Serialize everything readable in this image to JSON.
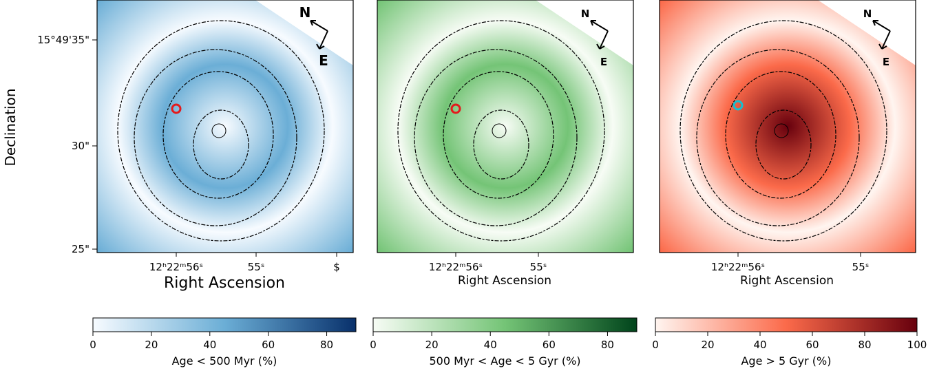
{
  "figure": {
    "y_label": "Declination",
    "dec_ticks": [
      "15°49'35\"",
      "30\"",
      "25\""
    ],
    "panels": [
      {
        "x_label": "Right Ascension",
        "ra_ticks": [
          "12ʰ22ᵐ56ˢ",
          "55ˢ",
          "$"
        ],
        "compass": {
          "n": "N",
          "e": "E"
        },
        "marker_color": "#e41a1c",
        "colorbar": {
          "label": "Age < 500 Myr (%)",
          "lim": [
            0,
            90
          ],
          "ticks": [
            0,
            20,
            40,
            60,
            80
          ],
          "colors": [
            "#f7fbff",
            "#6baed6",
            "#08306b"
          ]
        }
      },
      {
        "x_label": "Right Ascension",
        "ra_ticks": [
          "12ʰ22ᵐ56ˢ",
          "55ˢ"
        ],
        "compass": {
          "n": "N",
          "e": "E"
        },
        "marker_color": "#e41a1c",
        "colorbar": {
          "label": "500 Myr < Age < 5 Gyr (%)",
          "lim": [
            0,
            90
          ],
          "ticks": [
            0,
            20,
            40,
            60,
            80
          ],
          "colors": [
            "#f7fcf5",
            "#74c476",
            "#00441b"
          ]
        }
      },
      {
        "x_label": "Right Ascension",
        "ra_ticks": [
          "12ʰ22ᵐ56ˢ",
          "55ˢ"
        ],
        "compass": {
          "n": "N",
          "e": "E"
        },
        "marker_color": "#17becf",
        "colorbar": {
          "label": "Age > 5 Gyr (%)",
          "lim": [
            0,
            100
          ],
          "ticks": [
            0,
            20,
            40,
            60,
            80,
            100
          ],
          "colors": [
            "#fff5f0",
            "#fb6a4a",
            "#67000d"
          ]
        }
      }
    ]
  }
}
